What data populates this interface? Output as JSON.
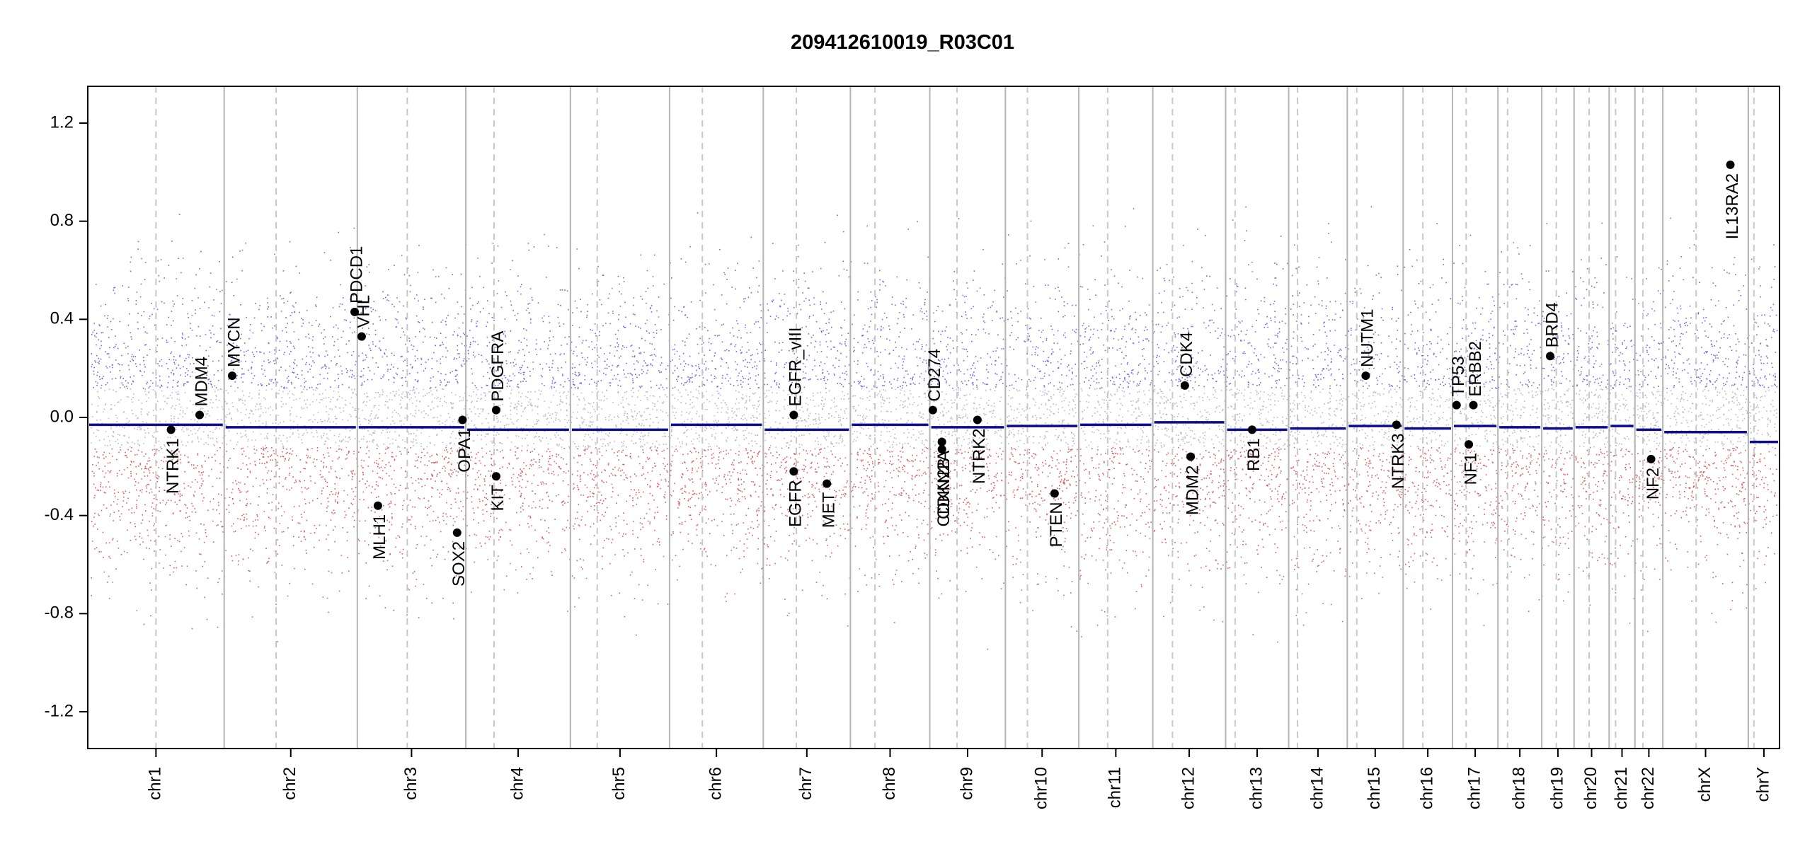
{
  "chart_data": {
    "type": "scatter",
    "title": "209412610019_R03C01",
    "xlabel": "",
    "ylabel": "",
    "ylim": [
      -1.35,
      1.35
    ],
    "y_ticks": [
      -1.2,
      -0.8,
      -0.4,
      0.0,
      0.4,
      0.8,
      1.2
    ],
    "y_tick_labels": [
      "-1.2",
      "-0.8",
      "-0.4",
      "0.0",
      "0.4",
      "0.8",
      "1.2"
    ],
    "grid": false,
    "legend": "none",
    "colors": {
      "gain_points": "#3a3ad6",
      "loss_points": "#c82828",
      "segment": "#0c0c8c",
      "chrom_boundary": "#b4b4b4",
      "centromere": "#c8c8c8"
    },
    "chromosomes": [
      {
        "name": "chr1",
        "label": "chr1",
        "length": 249,
        "centromere": 0.5
      },
      {
        "name": "chr2",
        "label": "chr2",
        "length": 243,
        "centromere": 0.39
      },
      {
        "name": "chr3",
        "label": "chr3",
        "length": 198,
        "centromere": 0.46
      },
      {
        "name": "chr4",
        "label": "chr4",
        "length": 191,
        "centromere": 0.27
      },
      {
        "name": "chr5",
        "label": "chr5",
        "length": 181,
        "centromere": 0.27
      },
      {
        "name": "chr6",
        "label": "chr6",
        "length": 171,
        "centromere": 0.35
      },
      {
        "name": "chr7",
        "label": "chr7",
        "length": 159,
        "centromere": 0.38
      },
      {
        "name": "chr8",
        "label": "chr8",
        "length": 145,
        "centromere": 0.31
      },
      {
        "name": "chr9",
        "label": "chr9",
        "length": 138,
        "centromere": 0.36
      },
      {
        "name": "chr10",
        "label": "chr10",
        "length": 134,
        "centromere": 0.3
      },
      {
        "name": "chr11",
        "label": "chr11",
        "length": 135,
        "centromere": 0.39
      },
      {
        "name": "chr12",
        "label": "chr12",
        "length": 133,
        "centromere": 0.27
      },
      {
        "name": "chr13",
        "label": "chr13",
        "length": 115,
        "centromere": 0.15
      },
      {
        "name": "chr14",
        "label": "chr14",
        "length": 107,
        "centromere": 0.15
      },
      {
        "name": "chr15",
        "label": "chr15",
        "length": 102,
        "centromere": 0.17
      },
      {
        "name": "chr16",
        "label": "chr16",
        "length": 90,
        "centromere": 0.4
      },
      {
        "name": "chr17",
        "label": "chr17",
        "length": 83,
        "centromere": 0.3
      },
      {
        "name": "chr18",
        "label": "chr18",
        "length": 80,
        "centromere": 0.22
      },
      {
        "name": "chr19",
        "label": "chr19",
        "length": 59,
        "centromere": 0.45
      },
      {
        "name": "chr20",
        "label": "chr20",
        "length": 64,
        "centromere": 0.43
      },
      {
        "name": "chr21",
        "label": "chr21",
        "length": 47,
        "centromere": 0.25
      },
      {
        "name": "chr22",
        "label": "chr22",
        "length": 51,
        "centromere": 0.29
      },
      {
        "name": "chrX",
        "label": "chrX",
        "length": 156,
        "centromere": 0.39
      },
      {
        "name": "chrY",
        "label": "chrY",
        "length": 57,
        "centromere": 0.18
      }
    ],
    "segments": [
      {
        "chr": "chr1",
        "value": -0.03
      },
      {
        "chr": "chr2",
        "value": -0.04
      },
      {
        "chr": "chr3",
        "value": -0.04
      },
      {
        "chr": "chr4",
        "value": -0.05
      },
      {
        "chr": "chr5",
        "value": -0.05
      },
      {
        "chr": "chr6",
        "value": -0.03
      },
      {
        "chr": "chr7",
        "value": -0.05
      },
      {
        "chr": "chr8",
        "value": -0.03
      },
      {
        "chr": "chr9",
        "value": -0.04
      },
      {
        "chr": "chr10",
        "value": -0.035
      },
      {
        "chr": "chr11",
        "value": -0.03
      },
      {
        "chr": "chr12",
        "value": -0.02
      },
      {
        "chr": "chr13",
        "value": -0.05
      },
      {
        "chr": "chr14",
        "value": -0.045
      },
      {
        "chr": "chr15",
        "value": -0.035
      },
      {
        "chr": "chr16",
        "value": -0.045
      },
      {
        "chr": "chr17",
        "value": -0.035
      },
      {
        "chr": "chr18",
        "value": -0.04
      },
      {
        "chr": "chr19",
        "value": -0.045
      },
      {
        "chr": "chr20",
        "value": -0.04
      },
      {
        "chr": "chr21",
        "value": -0.035
      },
      {
        "chr": "chr22",
        "value": -0.05
      },
      {
        "chr": "chrX",
        "value": -0.06
      },
      {
        "chr": "chrY",
        "value": -0.1
      }
    ],
    "genes": [
      {
        "name": "NTRK1",
        "chr": "chr1",
        "pos": 0.61,
        "value": -0.05,
        "side": "below"
      },
      {
        "name": "MDM4",
        "chr": "chr1",
        "pos": 0.82,
        "value": 0.01,
        "side": "above"
      },
      {
        "name": "MYCN",
        "chr": "chr2",
        "pos": 0.06,
        "value": 0.17,
        "side": "above"
      },
      {
        "name": "PDCD1",
        "chr": "chr2",
        "pos": 0.98,
        "value": 0.43,
        "side": "above"
      },
      {
        "name": "VHL",
        "chr": "chr3",
        "pos": 0.04,
        "value": 0.33,
        "side": "above"
      },
      {
        "name": "MLH1",
        "chr": "chr3",
        "pos": 0.19,
        "value": -0.36,
        "side": "below"
      },
      {
        "name": "SOX2",
        "chr": "chr3",
        "pos": 0.92,
        "value": -0.47,
        "side": "below"
      },
      {
        "name": "OPA1",
        "chr": "chr3",
        "pos": 0.97,
        "value": -0.01,
        "side": "below"
      },
      {
        "name": "PDGFRA",
        "chr": "chr4",
        "pos": 0.29,
        "value": 0.03,
        "side": "above"
      },
      {
        "name": "KIT",
        "chr": "chr4",
        "pos": 0.29,
        "value": -0.24,
        "side": "below"
      },
      {
        "name": "EGFR_vIII",
        "chr": "chr7",
        "pos": 0.35,
        "value": 0.01,
        "side": "above"
      },
      {
        "name": "EGFR",
        "chr": "chr7",
        "pos": 0.35,
        "value": -0.22,
        "side": "below"
      },
      {
        "name": "MET",
        "chr": "chr7",
        "pos": 0.73,
        "value": -0.27,
        "side": "below"
      },
      {
        "name": "CD274",
        "chr": "chr9",
        "pos": 0.04,
        "value": 0.03,
        "side": "above"
      },
      {
        "name": "CDKN2A",
        "chr": "chr9",
        "pos": 0.16,
        "value": -0.1,
        "side": "below"
      },
      {
        "name": "CDKN2B",
        "chr": "chr9",
        "pos": 0.16,
        "value": -0.13,
        "side": "below"
      },
      {
        "name": "NTRK2",
        "chr": "chr9",
        "pos": 0.63,
        "value": -0.01,
        "side": "below"
      },
      {
        "name": "PTEN",
        "chr": "chr10",
        "pos": 0.67,
        "value": -0.31,
        "side": "below"
      },
      {
        "name": "CDK4",
        "chr": "chr12",
        "pos": 0.44,
        "value": 0.13,
        "side": "above"
      },
      {
        "name": "MDM2",
        "chr": "chr12",
        "pos": 0.52,
        "value": -0.16,
        "side": "below"
      },
      {
        "name": "RB1",
        "chr": "chr13",
        "pos": 0.42,
        "value": -0.05,
        "side": "below"
      },
      {
        "name": "NUTM1",
        "chr": "chr15",
        "pos": 0.33,
        "value": 0.17,
        "side": "above"
      },
      {
        "name": "NTRK3",
        "chr": "chr15",
        "pos": 0.88,
        "value": -0.03,
        "side": "below"
      },
      {
        "name": "TP53",
        "chr": "chr17",
        "pos": 0.09,
        "value": 0.05,
        "side": "above"
      },
      {
        "name": "ERBB2",
        "chr": "chr17",
        "pos": 0.46,
        "value": 0.05,
        "side": "above"
      },
      {
        "name": "NF1",
        "chr": "chr17",
        "pos": 0.36,
        "value": -0.11,
        "side": "below"
      },
      {
        "name": "BRD4",
        "chr": "chr19",
        "pos": 0.26,
        "value": 0.25,
        "side": "above"
      },
      {
        "name": "NF2",
        "chr": "chr22",
        "pos": 0.58,
        "value": -0.17,
        "side": "below"
      },
      {
        "name": "IL13RA2",
        "chr": "chrX",
        "pos": 0.79,
        "value": 1.03,
        "side": "below"
      }
    ]
  }
}
